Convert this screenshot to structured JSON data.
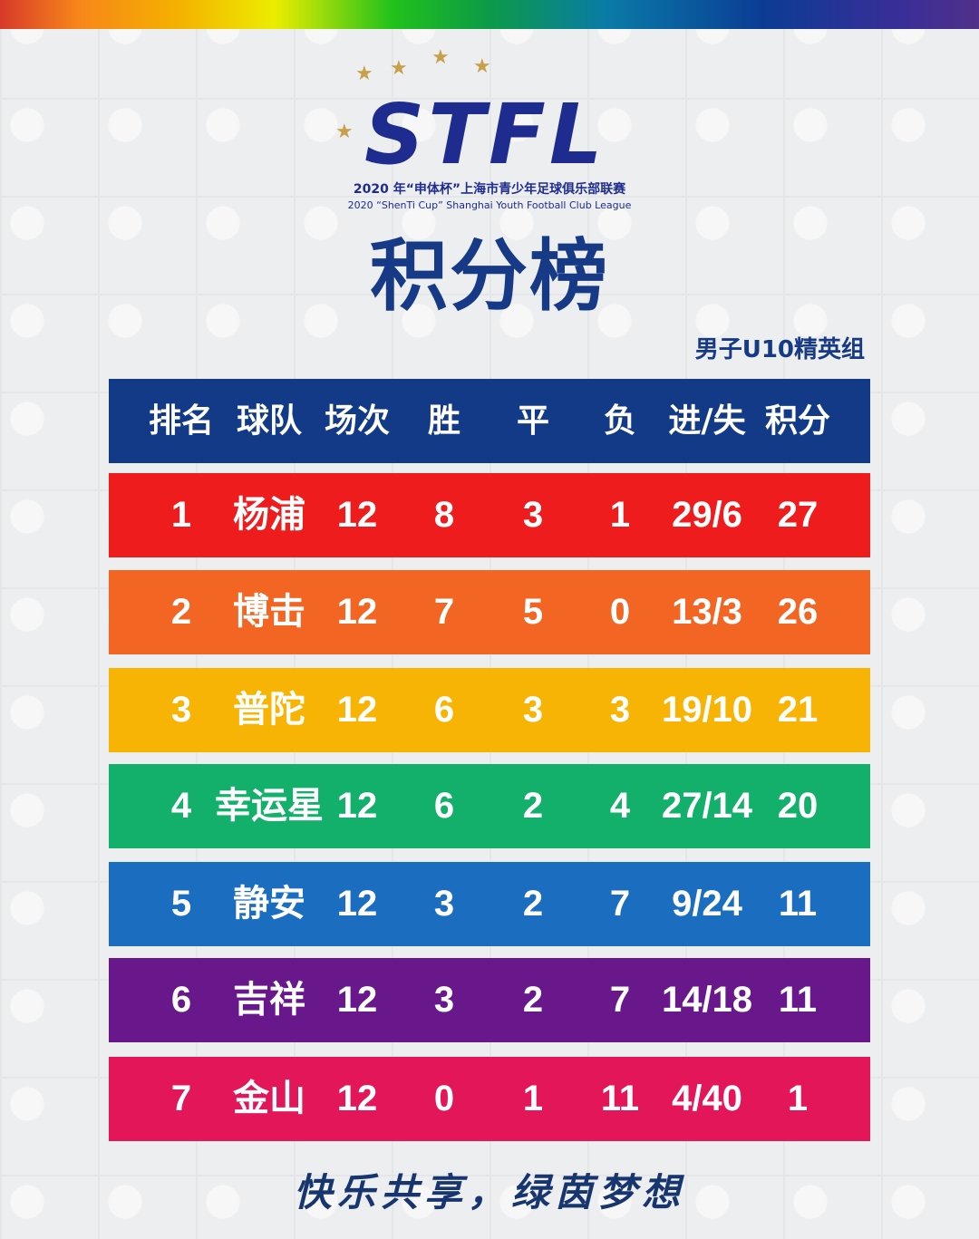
{
  "banner": {
    "logo": "STFL",
    "subtitle_cn": "2020 年“申体杯”上海市青少年足球俱乐部联赛",
    "subtitle_en": "2020 “ShenTi Cup” Shanghai Youth Football Club League"
  },
  "title": "积分榜",
  "group": "男子U10精英组",
  "headers": [
    "排名",
    "球队",
    "场次",
    "胜",
    "平",
    "负",
    "进/失",
    "积分"
  ],
  "rows": [
    {
      "rank": "1",
      "team": "杨浦",
      "played": "12",
      "w": "8",
      "d": "3",
      "l": "1",
      "goals": "29/6",
      "pts": "27",
      "color": "#ee1c1c"
    },
    {
      "rank": "2",
      "team": "博击",
      "played": "12",
      "w": "7",
      "d": "5",
      "l": "0",
      "goals": "13/3",
      "pts": "26",
      "color": "#f26522"
    },
    {
      "rank": "3",
      "team": "普陀",
      "played": "12",
      "w": "6",
      "d": "3",
      "l": "3",
      "goals": "19/10",
      "pts": "21",
      "color": "#f8b404"
    },
    {
      "rank": "4",
      "team": "幸运星",
      "played": "12",
      "w": "6",
      "d": "2",
      "l": "4",
      "goals": "27/14",
      "pts": "20",
      "color": "#12b06a"
    },
    {
      "rank": "5",
      "team": "静安",
      "played": "12",
      "w": "3",
      "d": "2",
      "l": "7",
      "goals": "9/24",
      "pts": "11",
      "color": "#1a6dbf"
    },
    {
      "rank": "6",
      "team": "吉祥",
      "played": "12",
      "w": "3",
      "d": "2",
      "l": "7",
      "goals": "14/18",
      "pts": "11",
      "color": "#68188a"
    },
    {
      "rank": "7",
      "team": "金山",
      "played": "12",
      "w": "0",
      "d": "1",
      "l": "11",
      "goals": "4/40",
      "pts": "1",
      "color": "#e3165a"
    }
  ],
  "slogan": "快乐共享，绿茵梦想"
}
